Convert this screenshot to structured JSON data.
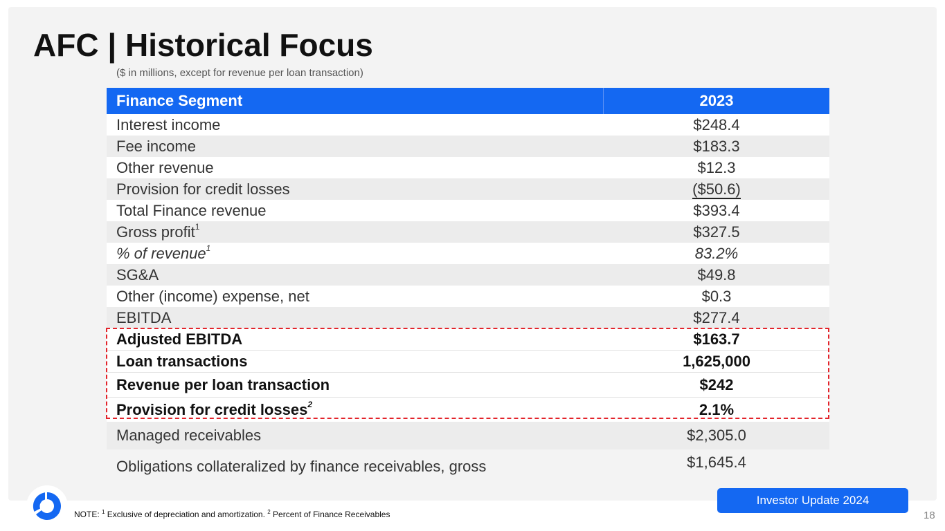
{
  "title": "AFC | Historical Focus",
  "subtitle": "($ in millions, except for revenue per loan transaction)",
  "table": {
    "header": {
      "label": "Finance Segment",
      "year": "2023"
    },
    "rows": [
      {
        "label": "Interest income",
        "value": "$248.4"
      },
      {
        "label": "Fee income",
        "value": "$183.3"
      },
      {
        "label": "Other revenue",
        "value": "$12.3"
      },
      {
        "label": "Provision for credit losses",
        "value": "($50.6)"
      },
      {
        "label": "Total Finance revenue",
        "value": "$393.4"
      },
      {
        "label": "Gross profit",
        "sup": "1",
        "value": "$327.5"
      },
      {
        "label": "% of revenue",
        "sup": "1",
        "value": "83.2%"
      },
      {
        "label": "SG&A",
        "value": "$49.8"
      },
      {
        "label": "Other (income) expense, net",
        "value": "$0.3"
      },
      {
        "label": "EBITDA",
        "value": "$277.4"
      },
      {
        "label": "Adjusted EBITDA",
        "value": "$163.7"
      },
      {
        "label": "Loan transactions",
        "value": "1,625,000"
      },
      {
        "label": "Revenue per loan transaction",
        "value": "$242"
      },
      {
        "label": "Provision for credit losses",
        "sup": "2",
        "value": "2.1%"
      },
      {
        "label": "Managed receivables",
        "value": "$2,305.0"
      },
      {
        "label": "Obligations collateralized by finance receivables, gross",
        "value": "$1,645.4"
      }
    ]
  },
  "note": {
    "prefix": "NOTE: ",
    "sup1": "1",
    "text1": " Exclusive of depreciation and amortization. ",
    "sup2": "2",
    "text2": " Percent of Finance Receivables"
  },
  "badge": "Investor Update 2024",
  "page_number": "18",
  "colors": {
    "accent": "#1468f2",
    "highlight_border": "#e3242b",
    "panel": "#f3f3f3",
    "logo": "#1468f2"
  }
}
